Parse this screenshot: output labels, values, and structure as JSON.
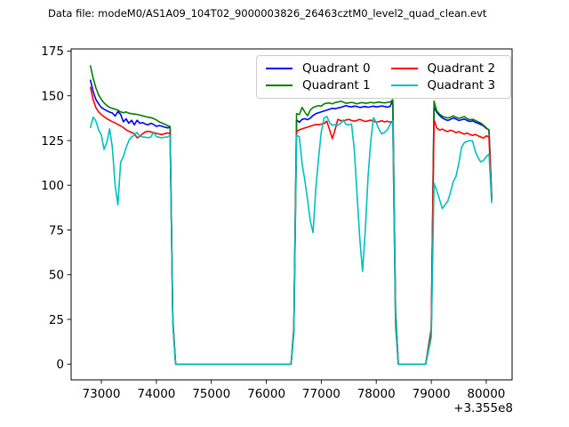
{
  "title": "Data file: modeM0/AS1A09_104T02_9000003826_26463cztM0_level2_quad_clean.evt",
  "axes": {
    "offset_label": "+3.355e8",
    "x_ticks": [
      {
        "value": 73000,
        "label": "73000"
      },
      {
        "value": 74000,
        "label": "74000"
      },
      {
        "value": 75000,
        "label": "75000"
      },
      {
        "value": 76000,
        "label": "76000"
      },
      {
        "value": 77000,
        "label": "77000"
      },
      {
        "value": 78000,
        "label": "78000"
      },
      {
        "value": 79000,
        "label": "79000"
      },
      {
        "value": 80000,
        "label": "80000"
      }
    ],
    "y_ticks": [
      {
        "value": 0,
        "label": "0"
      },
      {
        "value": 25,
        "label": "25"
      },
      {
        "value": 50,
        "label": "50"
      },
      {
        "value": 75,
        "label": "75"
      },
      {
        "value": 100,
        "label": "100"
      },
      {
        "value": 125,
        "label": "125"
      },
      {
        "value": 150,
        "label": "150"
      },
      {
        "value": 175,
        "label": "175"
      }
    ]
  },
  "chart_data": {
    "type": "line",
    "title": "Data file: modeM0/AS1A09_104T02_9000003826_26463cztM0_level2_quad_clean.evt",
    "xlabel": "",
    "ylabel": "",
    "x_axis_offset": 335500000,
    "xlim": [
      72450,
      80470
    ],
    "ylim": [
      -8.8,
      176.2
    ],
    "grid": false,
    "legend_position": "upper center, 2 columns",
    "x": [
      72800,
      72850,
      72900,
      72950,
      73000,
      73050,
      73100,
      73150,
      73200,
      73250,
      73300,
      73350,
      73400,
      73450,
      73500,
      73550,
      73600,
      73650,
      73700,
      73750,
      73800,
      73850,
      73900,
      73950,
      74000,
      74050,
      74100,
      74150,
      74200,
      74250,
      74300,
      74350,
      74400,
      74700,
      75000,
      75300,
      75600,
      75900,
      76200,
      76450,
      76500,
      76550,
      76600,
      76650,
      76700,
      76750,
      76800,
      76850,
      76900,
      76950,
      77000,
      77050,
      77100,
      77150,
      77200,
      77250,
      77300,
      77350,
      77400,
      77450,
      77500,
      77550,
      77600,
      77650,
      77700,
      77750,
      77800,
      77850,
      77900,
      77950,
      78000,
      78050,
      78100,
      78150,
      78200,
      78250,
      78300,
      78350,
      78400,
      78500,
      78700,
      78900,
      79000,
      79050,
      79100,
      79150,
      79200,
      79250,
      79300,
      79350,
      79400,
      79450,
      79500,
      79550,
      79600,
      79650,
      79700,
      79750,
      79800,
      79850,
      79900,
      79950,
      80000,
      80050,
      80100
    ],
    "series": [
      {
        "name": "Quadrant 0",
        "color": "#0000ff",
        "values": [
          159,
          152.5,
          148,
          145.5,
          143.5,
          142.5,
          141.7,
          140.9,
          140.4,
          138.7,
          141.2,
          139.6,
          135.4,
          137.1,
          134.6,
          136.3,
          133.8,
          136.3,
          134.6,
          135,
          134.2,
          133.8,
          134.6,
          134,
          132.9,
          133.4,
          133,
          132.5,
          132.1,
          132.3,
          24,
          0,
          0,
          0,
          0,
          0,
          0,
          0,
          0,
          0,
          19,
          136.5,
          135.2,
          136.8,
          137.2,
          136.6,
          137.5,
          139,
          140,
          140.5,
          141,
          141.5,
          142,
          142.5,
          143,
          142.8,
          143.2,
          143.5,
          144,
          144.5,
          144,
          143.8,
          144.2,
          144,
          143.5,
          143.8,
          144,
          143.6,
          143.9,
          144.2,
          143.8,
          144,
          144.3,
          144,
          143.7,
          144,
          147.5,
          29,
          0,
          0,
          0,
          0,
          19,
          143.5,
          140.8,
          139,
          137.6,
          136.8,
          136.2,
          136.8,
          137.6,
          137,
          136.2,
          136.6,
          137,
          136.2,
          135.6,
          136,
          135.2,
          134.6,
          134,
          133.2,
          131.8,
          131,
          92.5
        ]
      },
      {
        "name": "Quadrant 1",
        "color": "#008000",
        "values": [
          167,
          160,
          154.5,
          150.5,
          148,
          146,
          144.5,
          143.5,
          143,
          142.5,
          142,
          141,
          140.5,
          141,
          140.3,
          140,
          139.8,
          139.6,
          139.2,
          138.8,
          138.4,
          138,
          137.8,
          137.2,
          136.5,
          135.4,
          134.8,
          134.2,
          133.4,
          132.9,
          25,
          0,
          0,
          0,
          0,
          0,
          0,
          0,
          0,
          0,
          20,
          140,
          139.5,
          143.5,
          141,
          138.8,
          142,
          143.5,
          144,
          144.5,
          144.2,
          145.5,
          145.8,
          146,
          145.5,
          146.2,
          146.5,
          147,
          146.5,
          145.8,
          146,
          146.3,
          146,
          145.5,
          146,
          146.2,
          145.8,
          146,
          146.3,
          146,
          146.2,
          146.5,
          146.2,
          146,
          146.3,
          146.5,
          147.8,
          30,
          0,
          0,
          0,
          0,
          20,
          147,
          141.5,
          139.8,
          138.6,
          138,
          137.6,
          138,
          138.8,
          138,
          137.4,
          137.8,
          138.4,
          137.2,
          136.6,
          136.9,
          136.2,
          135.4,
          134.8,
          133.6,
          132.2,
          130.6,
          92
        ]
      },
      {
        "name": "Quadrant 2",
        "color": "#ff0000",
        "values": [
          155,
          148,
          143.5,
          141,
          139.5,
          138.3,
          137.2,
          136.3,
          135.5,
          134.8,
          134,
          133.2,
          132.2,
          131,
          130.2,
          129.5,
          128.8,
          126.5,
          127.3,
          128.8,
          129.8,
          130.2,
          129.8,
          129.4,
          129,
          128.6,
          128.3,
          128.8,
          129.2,
          129,
          23,
          0,
          0,
          0,
          0,
          0,
          0,
          0,
          0,
          0,
          18,
          130,
          131,
          131.5,
          132,
          132.5,
          133,
          133.5,
          134,
          133.8,
          134.2,
          134.5,
          135.8,
          131,
          126,
          131,
          136.8,
          136.2,
          135.8,
          136.5,
          136.8,
          136.2,
          135.8,
          136.3,
          136.8,
          136.2,
          135.6,
          136,
          136.4,
          135.8,
          135.2,
          135.6,
          136,
          135.4,
          135.8,
          135.2,
          135.8,
          22,
          0,
          0,
          0,
          0,
          18,
          136.5,
          132,
          130.8,
          131.4,
          130.6,
          130,
          130.8,
          130.2,
          129.4,
          130,
          129.2,
          128.6,
          129.2,
          128.4,
          127.8,
          128.4,
          127.6,
          127,
          126.3,
          127.6,
          127,
          91.5
        ]
      },
      {
        "name": "Quadrant 3",
        "color": "#00bfbf",
        "values": [
          132,
          138,
          136,
          131,
          128,
          120,
          124,
          131.5,
          121,
          100,
          89,
          113,
          116,
          121,
          125,
          127,
          128,
          129.5,
          127.5,
          127,
          126.8,
          126.5,
          127,
          129.7,
          127.2,
          126.8,
          126.5,
          126.8,
          127,
          127.8,
          22,
          0,
          0,
          0,
          0,
          0,
          0,
          0,
          0,
          0,
          17,
          128,
          127,
          112,
          103,
          92,
          80,
          73.5,
          98,
          115,
          130,
          137.5,
          138.5,
          135,
          133.5,
          134,
          133.5,
          134.5,
          136.5,
          134,
          133.8,
          134.2,
          120,
          95,
          70,
          51.8,
          75,
          105,
          125,
          137.8,
          135,
          131.2,
          128.7,
          129.5,
          131,
          133.8,
          136,
          25,
          0,
          0,
          0,
          0,
          15,
          101,
          97,
          92,
          87,
          89,
          91,
          96,
          102,
          105,
          112,
          121,
          123.8,
          124.5,
          125,
          124.8,
          119,
          115.4,
          113,
          113.9,
          116,
          117.5,
          90
        ]
      }
    ]
  }
}
